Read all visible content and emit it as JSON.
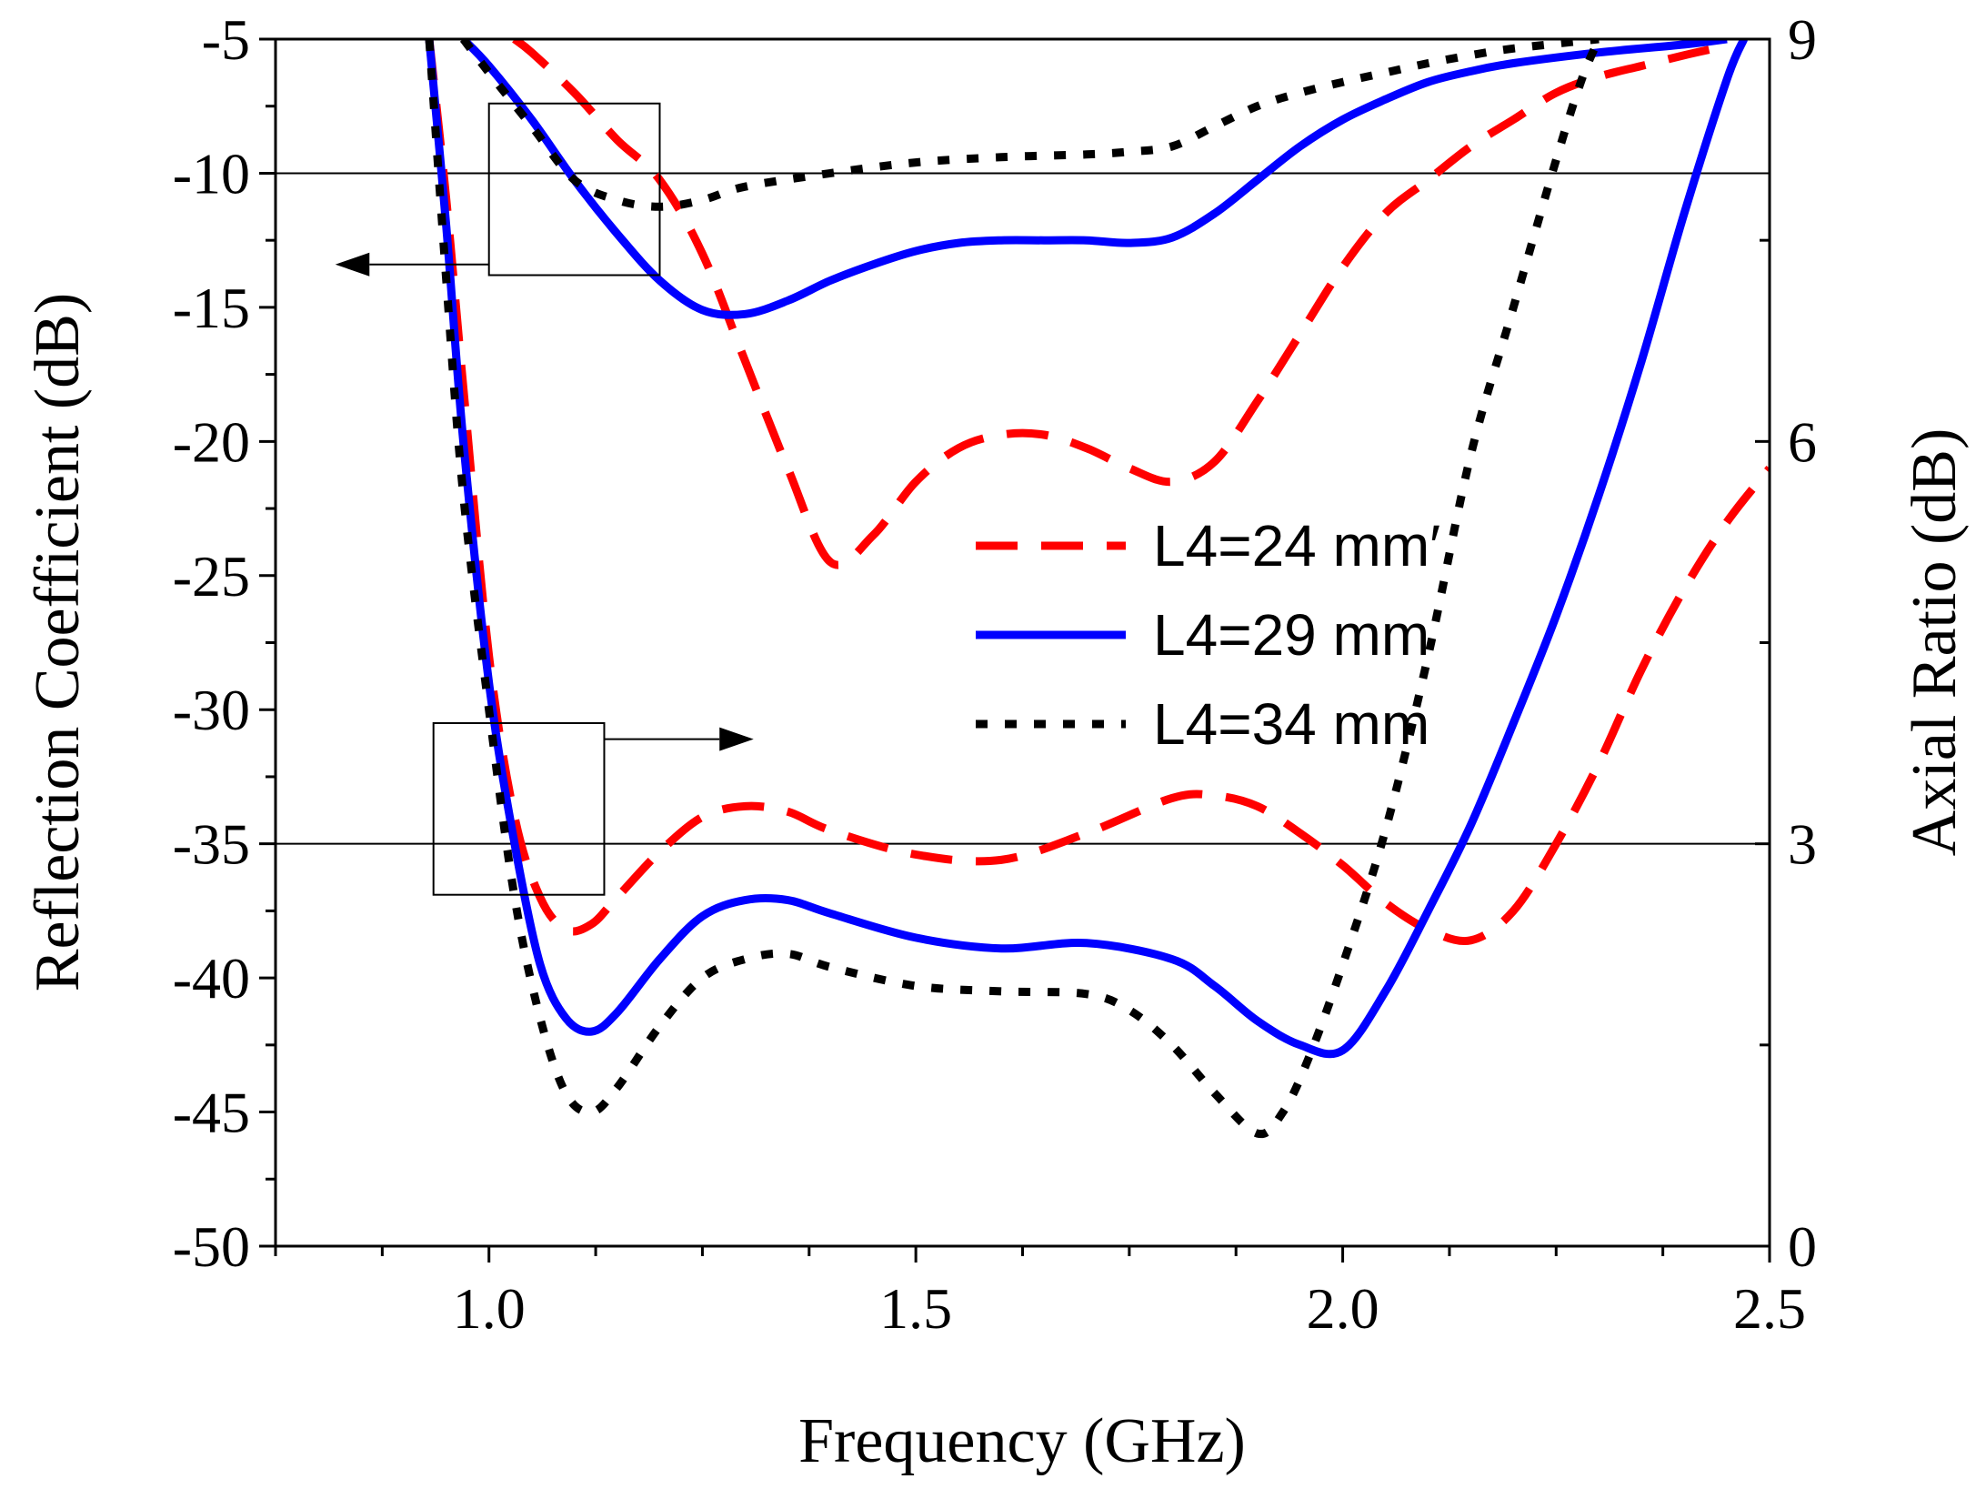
{
  "chart_data": {
    "type": "line",
    "xlabel": "Frequency (GHz)",
    "ylabel_left": "Reflection Coefficient (dB)",
    "ylabel_right": "Axial Ratio (dB)",
    "xlim": [
      0.75,
      2.5
    ],
    "ylim_left": [
      -50,
      -5
    ],
    "ylim_right": [
      0,
      9
    ],
    "x_ticks": [
      "1.0",
      "1.5",
      "2.0",
      "2.5"
    ],
    "x_tick_values": [
      1.0,
      1.5,
      2.0,
      2.5
    ],
    "y_left_ticks": [
      "-5",
      "-10",
      "-15",
      "-20",
      "-25",
      "-30",
      "-35",
      "-40",
      "-45",
      "-50"
    ],
    "y_left_tick_values": [
      -5,
      -10,
      -15,
      -20,
      -25,
      -30,
      -35,
      -40,
      -45,
      -50
    ],
    "y_right_ticks": [
      "9",
      "6",
      "3",
      "0"
    ],
    "y_right_tick_values": [
      9,
      6,
      3,
      0
    ],
    "reference_lines": [
      {
        "axis": "left",
        "value": -10
      },
      {
        "axis": "left",
        "value": -35
      }
    ],
    "legend_placement": "center-right",
    "series": [
      {
        "name": "L4=24 mm′",
        "color": "#ff0000",
        "style": "dashed",
        "reflection_x": [
          0.93,
          0.95,
          0.97,
          1.0,
          1.03,
          1.06,
          1.09,
          1.12,
          1.15,
          1.2,
          1.25,
          1.3,
          1.35,
          1.4,
          1.5,
          1.6,
          1.7,
          1.8,
          1.85,
          1.9,
          1.95,
          2.0,
          2.05,
          2.1,
          2.15,
          2.2,
          2.25,
          2.3,
          2.35,
          2.4,
          2.45,
          2.5
        ],
        "reflection_y": [
          -5,
          -11,
          -18,
          -28,
          -34,
          -37,
          -38.2,
          -38,
          -37,
          -35.3,
          -34,
          -33.6,
          -33.8,
          -34.5,
          -35.4,
          -35.6,
          -34.6,
          -33.3,
          -33.2,
          -33.6,
          -34.6,
          -35.8,
          -37.2,
          -38.2,
          -38.6,
          -37.5,
          -35,
          -32,
          -28.5,
          -25.5,
          -23,
          -21
        ],
        "axial_ratio_x": [
          1.03,
          1.05,
          1.1,
          1.15,
          1.2,
          1.25,
          1.3,
          1.35,
          1.4,
          1.45,
          1.5,
          1.55,
          1.6,
          1.65,
          1.7,
          1.75,
          1.8,
          1.85,
          1.9,
          1.95,
          2.0,
          2.05,
          2.1,
          2.15,
          2.2,
          2.25,
          2.3,
          2.35,
          2.4,
          2.45
        ],
        "axial_ratio_y": [
          9,
          8.9,
          8.6,
          8.25,
          7.95,
          7.4,
          6.6,
          5.8,
          5.1,
          5.3,
          5.7,
          5.95,
          6.05,
          6.05,
          5.95,
          5.8,
          5.7,
          5.85,
          6.3,
          6.8,
          7.3,
          7.7,
          7.95,
          8.2,
          8.4,
          8.6,
          8.72,
          8.8,
          8.88,
          8.95
        ]
      },
      {
        "name": "L4=29 mm",
        "color": "#0000ff",
        "style": "solid",
        "reflection_x": [
          0.93,
          0.95,
          0.97,
          1.0,
          1.03,
          1.06,
          1.09,
          1.12,
          1.15,
          1.2,
          1.25,
          1.3,
          1.35,
          1.4,
          1.5,
          1.6,
          1.7,
          1.8,
          1.85,
          1.9,
          1.95,
          2.0,
          2.05,
          2.1,
          2.15,
          2.2,
          2.25,
          2.3,
          2.35,
          2.4,
          2.45,
          2.47
        ],
        "reflection_y": [
          -5,
          -12,
          -20,
          -29,
          -35,
          -39.5,
          -41.5,
          -42,
          -41.3,
          -39.3,
          -37.7,
          -37.1,
          -37.1,
          -37.6,
          -38.5,
          -38.9,
          -38.7,
          -39.3,
          -40.3,
          -41.6,
          -42.5,
          -42.7,
          -40.5,
          -37.5,
          -34.3,
          -30.5,
          -26.5,
          -22,
          -17,
          -11.5,
          -6.5,
          -5
        ],
        "axial_ratio_x": [
          0.97,
          1.0,
          1.05,
          1.1,
          1.15,
          1.2,
          1.25,
          1.3,
          1.35,
          1.4,
          1.45,
          1.5,
          1.55,
          1.6,
          1.65,
          1.7,
          1.75,
          1.8,
          1.85,
          1.9,
          1.95,
          2.0,
          2.05,
          2.1,
          2.15,
          2.2,
          2.3,
          2.4,
          2.45
        ],
        "axial_ratio_y": [
          9,
          8.8,
          8.4,
          7.95,
          7.55,
          7.2,
          6.98,
          6.95,
          7.05,
          7.2,
          7.32,
          7.42,
          7.48,
          7.5,
          7.5,
          7.5,
          7.48,
          7.52,
          7.7,
          7.95,
          8.2,
          8.4,
          8.55,
          8.68,
          8.76,
          8.82,
          8.9,
          8.96,
          9.0
        ]
      },
      {
        "name": "L4=34 mm",
        "color": "#000000",
        "style": "dotted",
        "reflection_x": [
          0.93,
          0.95,
          0.97,
          1.0,
          1.03,
          1.06,
          1.09,
          1.12,
          1.15,
          1.2,
          1.25,
          1.3,
          1.35,
          1.4,
          1.5,
          1.6,
          1.7,
          1.75,
          1.8,
          1.85,
          1.9,
          1.93,
          1.96,
          2.0,
          2.05,
          2.1,
          2.15,
          2.2,
          2.25,
          2.28,
          2.3
        ],
        "reflection_y": [
          -5,
          -14,
          -22,
          -30,
          -37,
          -41.5,
          -44.3,
          -45,
          -44.1,
          -41.8,
          -40,
          -39.3,
          -39.1,
          -39.6,
          -40.3,
          -40.5,
          -40.6,
          -41.2,
          -42.5,
          -44.3,
          -45.8,
          -45,
          -43,
          -39.5,
          -34.5,
          -28,
          -20.5,
          -15,
          -9.5,
          -6.5,
          -5
        ],
        "axial_ratio_x": [
          0.97,
          1.0,
          1.05,
          1.1,
          1.15,
          1.2,
          1.25,
          1.3,
          1.4,
          1.5,
          1.6,
          1.7,
          1.75,
          1.8,
          1.85,
          1.9,
          1.95,
          2.0,
          2.05,
          2.1,
          2.15,
          2.2,
          2.3
        ],
        "axial_ratio_y": [
          9,
          8.75,
          8.35,
          7.95,
          7.8,
          7.75,
          7.8,
          7.9,
          8.0,
          8.08,
          8.12,
          8.14,
          8.16,
          8.2,
          8.35,
          8.5,
          8.6,
          8.68,
          8.75,
          8.82,
          8.88,
          8.93,
          9.0
        ]
      }
    ]
  }
}
